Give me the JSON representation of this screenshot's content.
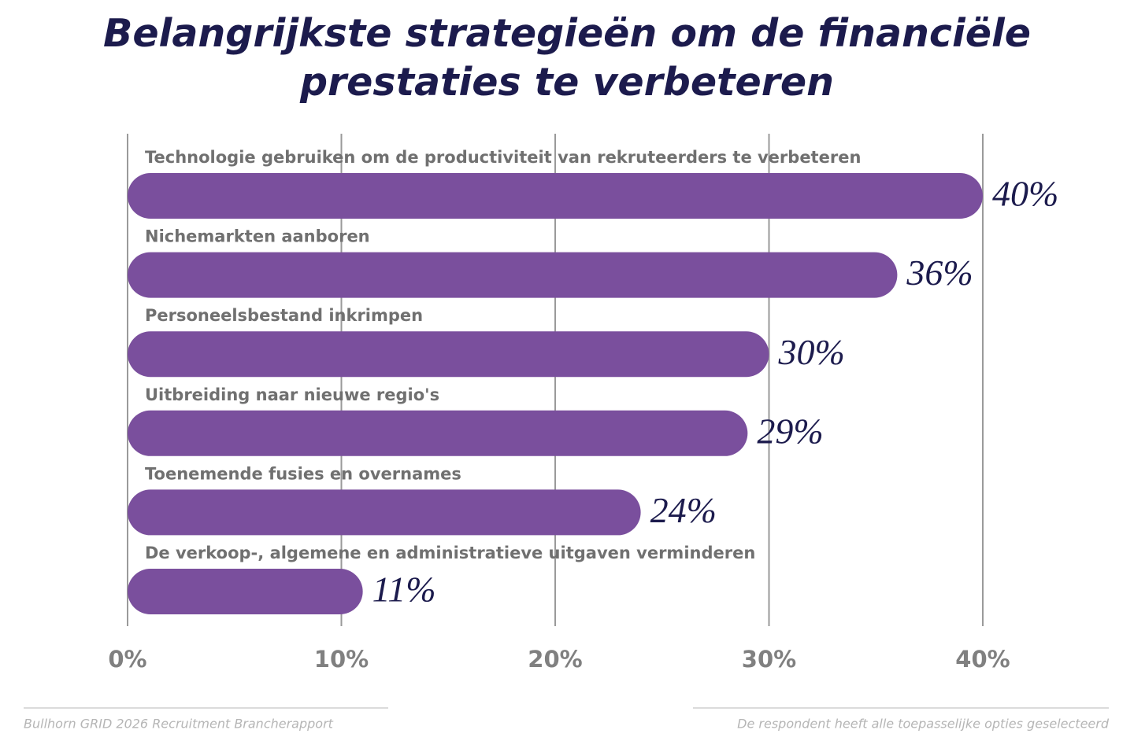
{
  "chart_data": {
    "type": "hbar",
    "title": "Belangrijkste strategieën om de financiële prestaties te verbeteren",
    "categories": [
      "Technologie gebruiken om de productiviteit van rekruteerders te verbeteren",
      "Nichemarkten aanboren",
      "Personeelsbestand inkrimpen",
      "Uitbreiding naar nieuwe regio's",
      "Toenemende fusies en overnames",
      "De verkoop-, algemene en administratieve uitgaven verminderen"
    ],
    "values": [
      40,
      36,
      30,
      29,
      24,
      11
    ],
    "value_labels": [
      "40%",
      "36%",
      "30%",
      "29%",
      "24%",
      "11%"
    ],
    "color": "#7a4f9d",
    "xlim": [
      0,
      40
    ],
    "xticks": [
      {
        "value": 0,
        "label": "0%"
      },
      {
        "value": 10,
        "label": "10%"
      },
      {
        "value": 20,
        "label": "20%"
      },
      {
        "value": 30,
        "label": "30%"
      },
      {
        "value": 40,
        "label": "40%"
      }
    ],
    "grid": true,
    "source": "Bullhorn GRID 2026 Recruitment Brancherapport",
    "note": "De respondent heeft alle toepasselijke opties geselecteerd"
  }
}
